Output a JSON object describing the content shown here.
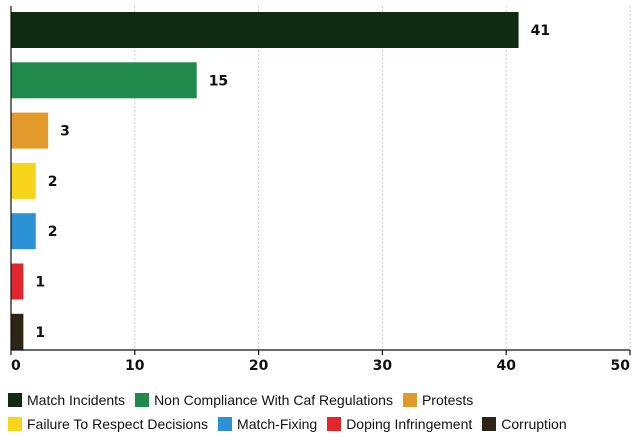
{
  "chart_data": {
    "type": "bar",
    "orientation": "horizontal",
    "categories": [
      "Match Incidents",
      "Non Compliance With Caf Regulations",
      "Protests",
      "Failure To Respect Decisions",
      "Match-Fixing",
      "Doping Infringement",
      "Corruption"
    ],
    "values": [
      41,
      15,
      3,
      2,
      2,
      1,
      1
    ],
    "data_labels": [
      "41",
      "15",
      "3",
      "2",
      "2",
      "1",
      "1"
    ],
    "colors": [
      "#0f2b12",
      "#1f8a4c",
      "#e29a2a",
      "#f7d51b",
      "#2b92d6",
      "#e3252e",
      "#2d2516"
    ],
    "xlim": [
      0,
      50
    ],
    "xticks": [
      0,
      10,
      20,
      30,
      40,
      50
    ],
    "xtick_labels": [
      "0",
      "10",
      "20",
      "30",
      "40",
      "50"
    ],
    "grid": true,
    "legend_position": "bottom",
    "legend": {
      "rows": [
        [
          0,
          1,
          2
        ],
        [
          3,
          4,
          5,
          6
        ]
      ]
    }
  }
}
